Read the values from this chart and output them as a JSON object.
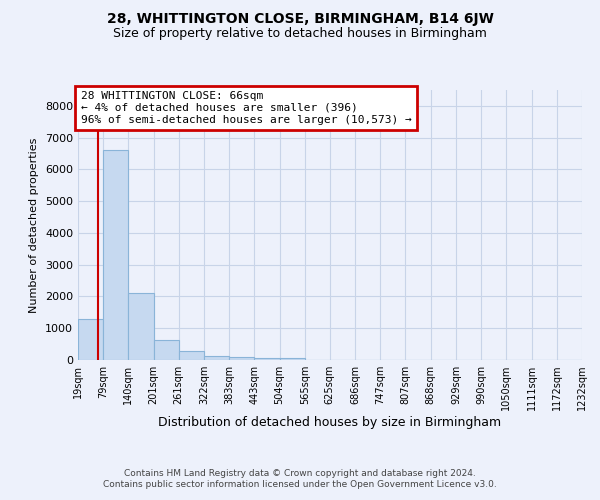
{
  "title": "28, WHITTINGTON CLOSE, BIRMINGHAM, B14 6JW",
  "subtitle": "Size of property relative to detached houses in Birmingham",
  "xlabel": "Distribution of detached houses by size in Birmingham",
  "ylabel": "Number of detached properties",
  "bar_values": [
    1300,
    6600,
    2100,
    620,
    290,
    130,
    90,
    70,
    50,
    0,
    0,
    0,
    0,
    0,
    0,
    0,
    0,
    0,
    0,
    0
  ],
  "bin_edges": [
    19,
    79,
    140,
    201,
    261,
    322,
    383,
    443,
    504,
    565,
    625,
    686,
    747,
    807,
    868,
    929,
    990,
    1050,
    1111,
    1172,
    1232
  ],
  "tick_labels": [
    "19sqm",
    "79sqm",
    "140sqm",
    "201sqm",
    "261sqm",
    "322sqm",
    "383sqm",
    "443sqm",
    "504sqm",
    "565sqm",
    "625sqm",
    "686sqm",
    "747sqm",
    "807sqm",
    "868sqm",
    "929sqm",
    "990sqm",
    "1050sqm",
    "1111sqm",
    "1172sqm",
    "1232sqm"
  ],
  "bar_color": "#c6d9f0",
  "bar_edge_color": "#8ab4d8",
  "red_line_x": 66,
  "ylim": [
    0,
    8500
  ],
  "yticks": [
    0,
    1000,
    2000,
    3000,
    4000,
    5000,
    6000,
    7000,
    8000
  ],
  "annotation_line1": "28 WHITTINGTON CLOSE: 66sqm",
  "annotation_line2": "← 4% of detached houses are smaller (396)",
  "annotation_line3": "96% of semi-detached houses are larger (10,573) →",
  "vline_color": "#cc0000",
  "grid_color": "#c8d4e8",
  "background_color": "#edf1fb",
  "footer_line1": "Contains HM Land Registry data © Crown copyright and database right 2024.",
  "footer_line2": "Contains public sector information licensed under the Open Government Licence v3.0."
}
